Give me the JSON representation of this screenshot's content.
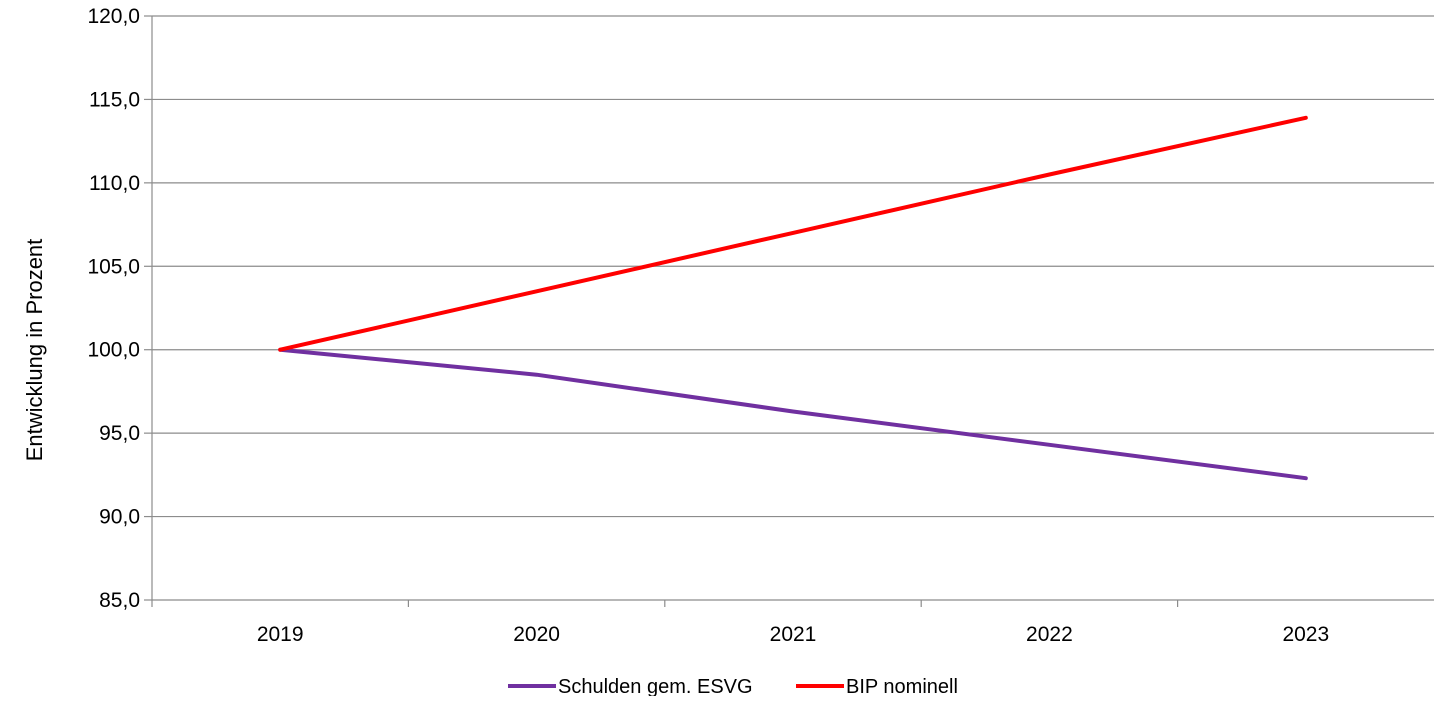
{
  "chart_data": {
    "type": "line",
    "title": "",
    "xlabel": "",
    "ylabel": "Entwicklung in Prozent",
    "categories": [
      "2019",
      "2020",
      "2021",
      "2022",
      "2023"
    ],
    "ylim": [
      85,
      120
    ],
    "yticks": [
      85,
      90,
      95,
      100,
      105,
      110,
      115,
      120
    ],
    "ytick_labels": [
      "85,0",
      "90,0",
      "95,0",
      "100,0",
      "105,0",
      "110,0",
      "115,0",
      "120,0"
    ],
    "grid": true,
    "legend_position": "bottom",
    "series": [
      {
        "name": "Schulden gem. ESVG",
        "color": "#7030A0",
        "values": [
          100.0,
          98.5,
          96.3,
          94.3,
          92.3
        ]
      },
      {
        "name": "BIP nominell",
        "color": "#FF0000",
        "values": [
          100.0,
          103.5,
          107.0,
          110.5,
          113.9
        ]
      }
    ]
  }
}
